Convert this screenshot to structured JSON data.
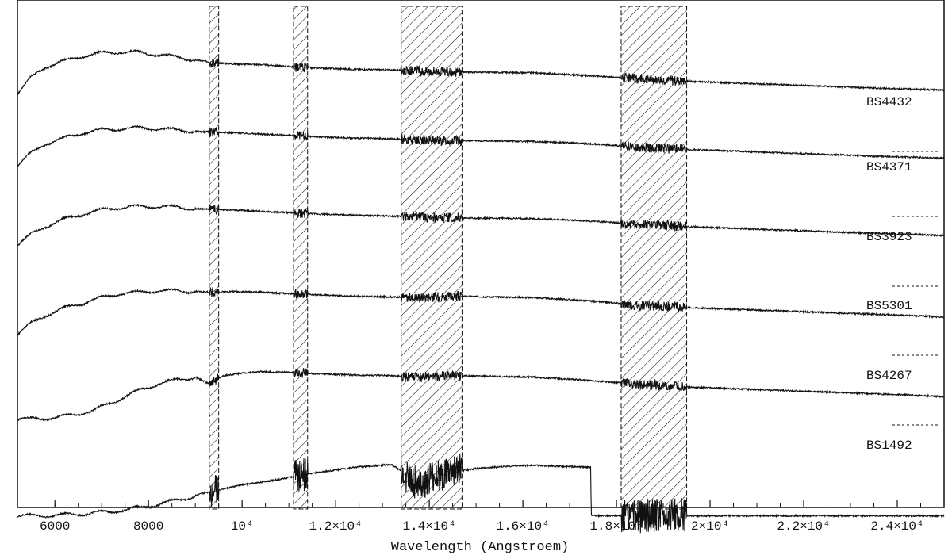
{
  "chart_data": {
    "type": "line",
    "title": "",
    "xlabel": "Wavelength (Angstroem)",
    "ylabel": "",
    "xlim": [
      5200,
      25000
    ],
    "x_ticks": [
      {
        "value": 6000,
        "label": "6000"
      },
      {
        "value": 8000,
        "label": "8000"
      },
      {
        "value": 10000,
        "label": "10⁴"
      },
      {
        "value": 12000,
        "label": "1.2×10⁴"
      },
      {
        "value": 14000,
        "label": "1.4×10⁴"
      },
      {
        "value": 16000,
        "label": "1.6×10⁴"
      },
      {
        "value": 18000,
        "label": "1.8×10⁴"
      },
      {
        "value": 20000,
        "label": "2×10⁴"
      },
      {
        "value": 22000,
        "label": "2.2×10⁴"
      },
      {
        "value": 24000,
        "label": "2.4×10⁴"
      }
    ],
    "shaded_regions": [
      {
        "x0": 9300,
        "x1": 9500
      },
      {
        "x0": 11100,
        "x1": 11400
      },
      {
        "x0": 13400,
        "x1": 14700
      },
      {
        "x0": 18100,
        "x1": 19500
      }
    ],
    "series": [
      {
        "name": "BS4432",
        "x": [
          5200,
          5500,
          5800,
          6200,
          6600,
          7000,
          7400,
          7800,
          8200,
          8600,
          9000,
          9400,
          9800,
          10400,
          11000,
          11600,
          12400,
          13200,
          13600,
          14000,
          14600,
          15400,
          16200,
          17000,
          17800,
          18400,
          19000,
          19600,
          20400,
          21200,
          22000,
          22800,
          23600,
          24400,
          25000
        ],
        "y": [
          0.6,
          0.72,
          0.8,
          0.84,
          0.88,
          0.9,
          0.91,
          0.905,
          0.89,
          0.87,
          0.85,
          0.83,
          0.82,
          0.815,
          0.8,
          0.79,
          0.78,
          0.775,
          0.77,
          0.765,
          0.76,
          0.757,
          0.755,
          0.74,
          0.725,
          0.71,
          0.7,
          0.69,
          0.68,
          0.67,
          0.66,
          0.65,
          0.64,
          0.632,
          0.625
        ]
      },
      {
        "name": "BS4371",
        "x": [
          5200,
          5500,
          5800,
          6200,
          6600,
          7000,
          7400,
          7800,
          8200,
          8600,
          9000,
          9400,
          9800,
          10400,
          11000,
          11600,
          12400,
          13200,
          13600,
          14000,
          14600,
          15400,
          16200,
          17000,
          17800,
          18400,
          19000,
          19600,
          20400,
          21200,
          22000,
          22800,
          23600,
          24400,
          25000
        ],
        "y": [
          0.44,
          0.53,
          0.6,
          0.64,
          0.68,
          0.7,
          0.71,
          0.715,
          0.71,
          0.7,
          0.69,
          0.685,
          0.68,
          0.67,
          0.66,
          0.65,
          0.64,
          0.635,
          0.63,
          0.625,
          0.62,
          0.62,
          0.615,
          0.605,
          0.59,
          0.575,
          0.565,
          0.555,
          0.545,
          0.535,
          0.525,
          0.515,
          0.505,
          0.498,
          0.49
        ]
      },
      {
        "name": "BS3923",
        "x": [
          5200,
          5500,
          5800,
          6200,
          6600,
          7000,
          7400,
          7800,
          8200,
          8600,
          9000,
          9400,
          9800,
          10400,
          11000,
          11600,
          12400,
          13200,
          13600,
          14000,
          14600,
          15400,
          16200,
          17000,
          17800,
          18400,
          19000,
          19600,
          20400,
          21200,
          22000,
          22800,
          23600,
          24400,
          25000
        ],
        "y": [
          0.3,
          0.38,
          0.44,
          0.49,
          0.53,
          0.56,
          0.58,
          0.585,
          0.585,
          0.58,
          0.57,
          0.565,
          0.56,
          0.55,
          0.54,
          0.53,
          0.52,
          0.515,
          0.51,
          0.505,
          0.5,
          0.498,
          0.495,
          0.485,
          0.47,
          0.455,
          0.445,
          0.435,
          0.425,
          0.415,
          0.405,
          0.395,
          0.385,
          0.378,
          0.37
        ]
      },
      {
        "name": "BS5301",
        "x": [
          5200,
          5500,
          5800,
          6200,
          6600,
          7000,
          7400,
          7800,
          8200,
          8600,
          9000,
          9400,
          9800,
          10400,
          11000,
          11600,
          12400,
          13200,
          13600,
          14000,
          14600,
          15400,
          16200,
          17000,
          17800,
          18400,
          19000,
          19600,
          20400,
          21200,
          22000,
          22800,
          23600,
          24400,
          25000
        ],
        "y": [
          0.14,
          0.22,
          0.28,
          0.33,
          0.37,
          0.41,
          0.44,
          0.45,
          0.46,
          0.46,
          0.455,
          0.45,
          0.455,
          0.45,
          0.44,
          0.43,
          0.42,
          0.415,
          0.41,
          0.415,
          0.42,
          0.415,
          0.41,
          0.395,
          0.375,
          0.355,
          0.345,
          0.335,
          0.325,
          0.315,
          0.305,
          0.295,
          0.285,
          0.275,
          0.265
        ]
      },
      {
        "name": "BS4267",
        "x": [
          5200,
          5600,
          6000,
          6400,
          6800,
          7000,
          7400,
          7800,
          8200,
          8600,
          9000,
          9300,
          9600,
          10000,
          10400,
          11000,
          11600,
          12400,
          13200,
          13600,
          14000,
          14600,
          15400,
          16200,
          17000,
          17800,
          18400,
          19000,
          19600,
          20400,
          21200,
          22000,
          22800,
          23600,
          24400,
          25000
        ],
        "y": [
          0.01,
          0.01,
          0.02,
          0.04,
          0.07,
          0.1,
          0.16,
          0.22,
          0.27,
          0.3,
          0.32,
          0.27,
          0.33,
          0.35,
          0.36,
          0.355,
          0.345,
          0.335,
          0.33,
          0.32,
          0.325,
          0.33,
          0.325,
          0.32,
          0.305,
          0.285,
          0.27,
          0.255,
          0.245,
          0.235,
          0.225,
          0.215,
          0.205,
          0.195,
          0.185,
          0.175
        ]
      },
      {
        "name": "BS1492",
        "x": [
          5200,
          5600,
          6000,
          6400,
          6800,
          7200,
          7600,
          8000,
          8400,
          8800,
          9200,
          9600,
          10000,
          10400,
          10800,
          11200,
          11600,
          12000,
          12400,
          12800,
          13200,
          13400,
          13600,
          13800,
          14000,
          14200,
          14600,
          15000,
          15400,
          15800,
          16200,
          16600,
          17000,
          17400,
          17450,
          17460,
          18000,
          20000,
          22000,
          24000,
          25000
        ],
        "y": [
          -0.15,
          -0.15,
          -0.145,
          -0.14,
          -0.13,
          -0.12,
          -0.1,
          -0.08,
          -0.05,
          -0.02,
          0.02,
          0.05,
          0.08,
          0.1,
          0.12,
          0.15,
          0.17,
          0.19,
          0.21,
          0.22,
          0.23,
          0.18,
          0.12,
          0.08,
          0.12,
          0.15,
          0.18,
          0.2,
          0.21,
          0.22,
          0.225,
          0.22,
          0.215,
          0.21,
          0.21,
          -0.15,
          -0.15,
          -0.15,
          -0.15,
          -0.15,
          -0.15
        ]
      }
    ]
  }
}
